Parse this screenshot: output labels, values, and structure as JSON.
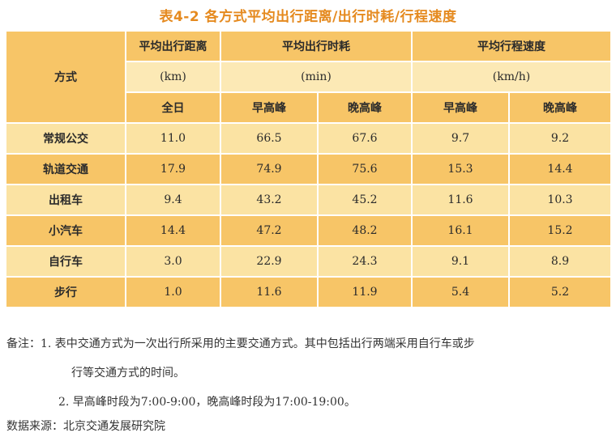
{
  "title": "表4-2 各方式平均出行距离/出行时耗/行程速度",
  "table": {
    "col_mode": "方式",
    "groups": [
      {
        "label": "平均出行距离",
        "unit": "(km)"
      },
      {
        "label": "平均出行时耗",
        "unit": "(min)"
      },
      {
        "label": "平均行程速度",
        "unit": "(km/h)"
      }
    ],
    "subheaders": [
      "全日",
      "早高峰",
      "晚高峰",
      "早高峰",
      "晚高峰"
    ],
    "rows": [
      {
        "mode": "常规公交",
        "values": [
          "11.0",
          "66.5",
          "67.6",
          "9.7",
          "9.2"
        ]
      },
      {
        "mode": "轨道交通",
        "values": [
          "17.9",
          "74.9",
          "75.6",
          "15.3",
          "14.4"
        ]
      },
      {
        "mode": "出租车",
        "values": [
          "9.4",
          "43.2",
          "45.2",
          "11.6",
          "10.3"
        ]
      },
      {
        "mode": "小汽车",
        "values": [
          "14.4",
          "47.2",
          "48.2",
          "16.1",
          "15.2"
        ]
      },
      {
        "mode": "自行车",
        "values": [
          "3.0",
          "22.9",
          "24.3",
          "9.1",
          "8.9"
        ]
      },
      {
        "mode": "步行",
        "values": [
          "1.0",
          "11.6",
          "11.9",
          "5.4",
          "5.2"
        ]
      }
    ]
  },
  "notes": {
    "line1": "备注：1. 表中交通方式为一次出行所采用的主要交通方式。其中包括出行两端采用自行车或步",
    "line2": "行等交通方式的时间。",
    "line3": "2. 早高峰时段为7:00-9:00，晚高峰时段为17:00-19:00。",
    "source": "数据来源：北京交通发展研究院"
  }
}
